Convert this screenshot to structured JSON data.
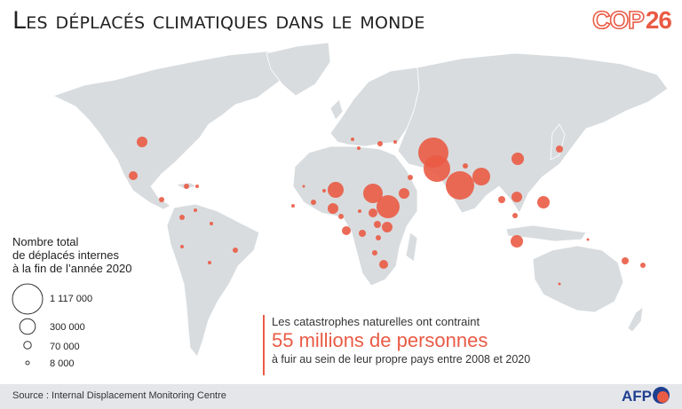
{
  "title": "Les déplacés climatiques dans le monde",
  "logo": {
    "cop_letters": "COP",
    "cop_number": "26"
  },
  "legend": {
    "title_lines": [
      "Nombre total",
      "de déplacés internes",
      "à la fin de l’année 2020"
    ],
    "items": [
      {
        "value": 1117000,
        "label": "1 117 000"
      },
      {
        "value": 300000,
        "label": "300 000"
      },
      {
        "value": 70000,
        "label": "70 000"
      },
      {
        "value": 8000,
        "label": "8 000"
      }
    ]
  },
  "callout": {
    "line1": "Les catastrophes naturelles ont contraint",
    "line2": "55 millions de personnes",
    "line3": "à fuir au sein de leur propre pays entre 2008 et 2020"
  },
  "footer": {
    "source": "Source : Internal Displacement Monitoring Centre",
    "brand": "AFP"
  },
  "colors": {
    "bubble": "#ea5b45",
    "land": "#d8dcdf",
    "ocean": "#ffffff",
    "footer": "#e4e6ea"
  }
}
